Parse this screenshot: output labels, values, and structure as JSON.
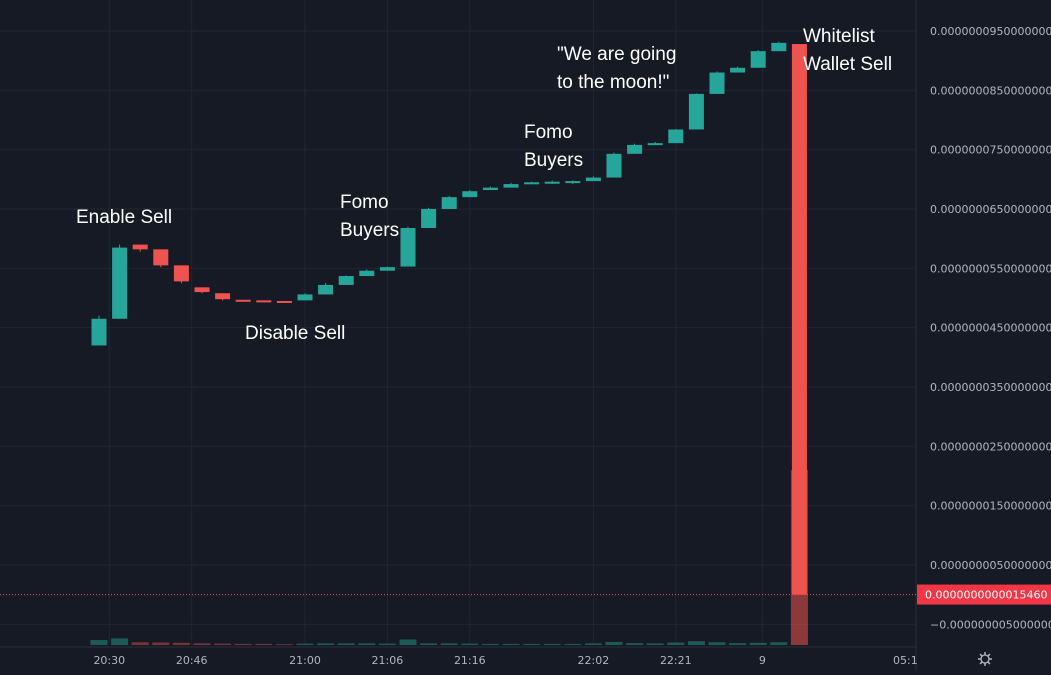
{
  "colors": {
    "background": "#161a25",
    "grid": "#232632",
    "up": "#26a69a",
    "down": "#ef5350",
    "axis_text": "#b2b5be",
    "current_price_bg": "#f23645"
  },
  "settings_icon": "gear-icon",
  "chart_data": {
    "type": "candlestick",
    "y_scale": "linear",
    "ylim": [
      -7e-09,
      1e-08
    ],
    "grid": true,
    "price_ticks": [
      "0.0000000950000000",
      "0.0000000850000000",
      "0.0000000750000000",
      "0.0000000650000000",
      "0.0000000550000000",
      "0.0000000450000000",
      "0.0000000350000000",
      "0.0000000250000000",
      "0.0000000150000000",
      "0.0000000050000000",
      "−0.0000000050000000"
    ],
    "price_tick_values": [
      9.5e-09,
      8.5e-09,
      7.5e-09,
      6.5e-09,
      5.5e-09,
      4.5e-09,
      3.5e-09,
      2.5e-09,
      1.5e-09,
      5e-10,
      -5e-10
    ],
    "current_price_label": "0.0000000000015460",
    "current_price": 1.546e-12,
    "time_ticks": [
      "20:30",
      "20:46",
      "21:00",
      "21:06",
      "21:16",
      "22:02",
      "22:21",
      "9",
      "05:1"
    ],
    "candles": [
      {
        "o": 4.2e-09,
        "h": 4.7e-09,
        "l": 4.2e-09,
        "c": 4.65e-09
      },
      {
        "o": 4.65e-09,
        "h": 5.9e-09,
        "l": 4.65e-09,
        "c": 5.85e-09
      },
      {
        "o": 5.9e-09,
        "h": 5.9e-09,
        "l": 5.78e-09,
        "c": 5.82e-09
      },
      {
        "o": 5.82e-09,
        "h": 5.82e-09,
        "l": 5.52e-09,
        "c": 5.55e-09
      },
      {
        "o": 5.55e-09,
        "h": 5.55e-09,
        "l": 5.25e-09,
        "c": 5.28e-09
      },
      {
        "o": 5.18e-09,
        "h": 5.18e-09,
        "l": 5.08e-09,
        "c": 5.1e-09
      },
      {
        "o": 5.08e-09,
        "h": 5.08e-09,
        "l": 4.96e-09,
        "c": 4.98e-09
      },
      {
        "o": 4.97e-09,
        "h": 4.97e-09,
        "l": 4.95e-09,
        "c": 4.96e-09
      },
      {
        "o": 4.96e-09,
        "h": 4.96e-09,
        "l": 4.94e-09,
        "c": 4.95e-09
      },
      {
        "o": 4.95e-09,
        "h": 4.95e-09,
        "l": 4.92e-09,
        "c": 4.93e-09
      },
      {
        "o": 4.96e-09,
        "h": 5.08e-09,
        "l": 4.96e-09,
        "c": 5.06e-09
      },
      {
        "o": 5.06e-09,
        "h": 5.25e-09,
        "l": 5.06e-09,
        "c": 5.22e-09
      },
      {
        "o": 5.22e-09,
        "h": 5.38e-09,
        "l": 5.22e-09,
        "c": 5.37e-09
      },
      {
        "o": 5.37e-09,
        "h": 5.48e-09,
        "l": 5.37e-09,
        "c": 5.46e-09
      },
      {
        "o": 5.46e-09,
        "h": 5.53e-09,
        "l": 5.46e-09,
        "c": 5.52e-09
      },
      {
        "o": 5.53e-09,
        "h": 6.2e-09,
        "l": 5.53e-09,
        "c": 6.18e-09
      },
      {
        "o": 6.18e-09,
        "h": 6.52e-09,
        "l": 6.18e-09,
        "c": 6.5e-09
      },
      {
        "o": 6.5e-09,
        "h": 6.72e-09,
        "l": 6.5e-09,
        "c": 6.7e-09
      },
      {
        "o": 6.7e-09,
        "h": 6.82e-09,
        "l": 6.7e-09,
        "c": 6.8e-09
      },
      {
        "o": 6.82e-09,
        "h": 6.88e-09,
        "l": 6.82e-09,
        "c": 6.86e-09
      },
      {
        "o": 6.86e-09,
        "h": 6.94e-09,
        "l": 6.86e-09,
        "c": 6.92e-09
      },
      {
        "o": 6.92e-09,
        "h": 6.96e-09,
        "l": 6.92e-09,
        "c": 6.95e-09
      },
      {
        "o": 6.94e-09,
        "h": 6.98e-09,
        "l": 6.92e-09,
        "c": 6.96e-09
      },
      {
        "o": 6.94e-09,
        "h": 6.98e-09,
        "l": 6.92e-09,
        "c": 6.97e-09
      },
      {
        "o": 6.97e-09,
        "h": 7.05e-09,
        "l": 6.97e-09,
        "c": 7.03e-09
      },
      {
        "o": 7.03e-09,
        "h": 7.45e-09,
        "l": 7.03e-09,
        "c": 7.43e-09
      },
      {
        "o": 7.43e-09,
        "h": 7.6e-09,
        "l": 7.43e-09,
        "c": 7.58e-09
      },
      {
        "o": 7.58e-09,
        "h": 7.63e-09,
        "l": 7.58e-09,
        "c": 7.61e-09
      },
      {
        "o": 7.61e-09,
        "h": 7.85e-09,
        "l": 7.61e-09,
        "c": 7.84e-09
      },
      {
        "o": 7.84e-09,
        "h": 8.45e-09,
        "l": 7.84e-09,
        "c": 8.44e-09
      },
      {
        "o": 8.44e-09,
        "h": 8.82e-09,
        "l": 8.44e-09,
        "c": 8.8e-09
      },
      {
        "o": 8.8e-09,
        "h": 8.9e-09,
        "l": 8.8e-09,
        "c": 8.88e-09
      },
      {
        "o": 8.88e-09,
        "h": 9.18e-09,
        "l": 8.88e-09,
        "c": 9.16e-09
      },
      {
        "o": 9.16e-09,
        "h": 9.32e-09,
        "l": 9.16e-09,
        "c": 9.3e-09
      },
      {
        "o": 9.28e-09,
        "h": 9.28e-09,
        "l": 1.546e-12,
        "c": 1.546e-12
      }
    ],
    "volumes": [
      0.9,
      1.2,
      0.5,
      0.45,
      0.4,
      0.3,
      0.25,
      0.2,
      0.2,
      0.15,
      0.25,
      0.3,
      0.3,
      0.3,
      0.25,
      1.0,
      0.3,
      0.3,
      0.25,
      0.2,
      0.2,
      0.2,
      0.2,
      0.2,
      0.3,
      0.55,
      0.35,
      0.3,
      0.45,
      0.7,
      0.5,
      0.35,
      0.4,
      0.5,
      9.0
    ],
    "annotations": [
      {
        "text_lines": [
          "Enable Sell"
        ],
        "x_index": 1,
        "y": 6.8e-09
      },
      {
        "text_lines": [
          "Disable Sell"
        ],
        "x_index": 8,
        "y": 4.5e-09
      },
      {
        "text_lines": [
          "Fomo",
          "Buyers"
        ],
        "x_index": 13,
        "y": 6.6e-09
      },
      {
        "text_lines": [
          "Fomo",
          "Buyers"
        ],
        "x_index": 22,
        "y": 7.9e-09
      },
      {
        "text_lines": [
          "\"We are going",
          "to the moon!\""
        ],
        "x_index": 27,
        "y": 9.6e-09
      },
      {
        "text_lines": [
          "Whitelist",
          "Wallet Sell"
        ],
        "x_index": 35,
        "y": 9.8e-09
      }
    ]
  }
}
